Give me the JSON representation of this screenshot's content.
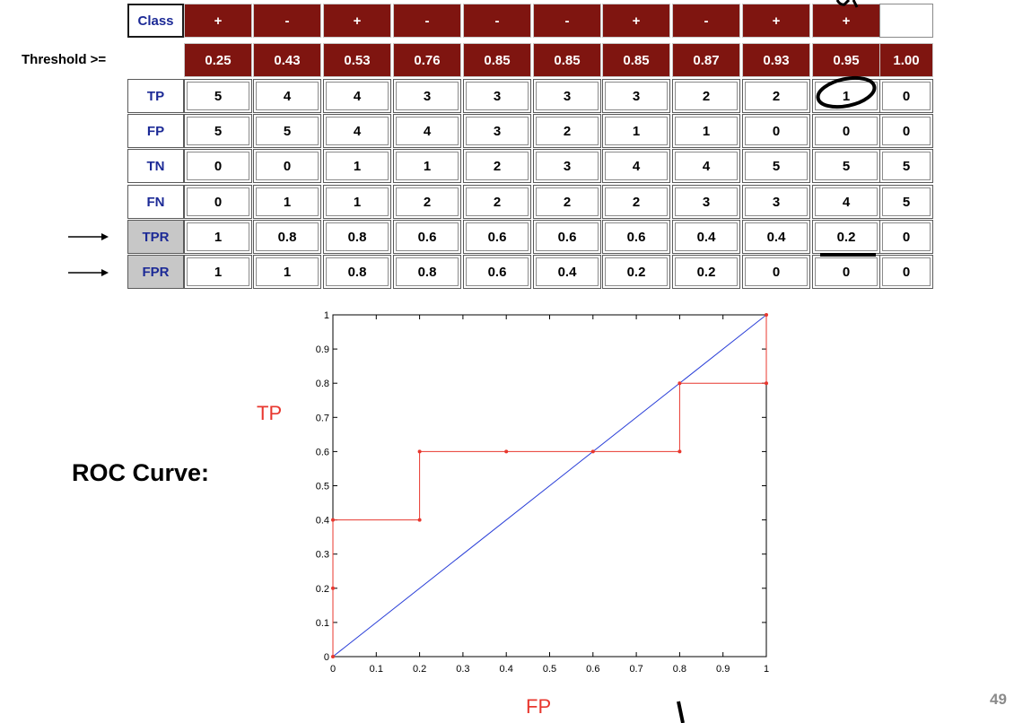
{
  "table": {
    "class_label": "Class",
    "class_row": [
      "+",
      "-",
      "+",
      "-",
      "-",
      "-",
      "+",
      "-",
      "+",
      "+",
      ""
    ],
    "threshold_label": "Threshold >=",
    "thresholds": [
      "0.25",
      "0.43",
      "0.53",
      "0.76",
      "0.85",
      "0.85",
      "0.85",
      "0.87",
      "0.93",
      "0.95",
      "1.00"
    ],
    "rows": [
      {
        "label": "TP",
        "values": [
          "5",
          "4",
          "4",
          "3",
          "3",
          "3",
          "3",
          "2",
          "2",
          "1",
          "0"
        ]
      },
      {
        "label": "FP",
        "values": [
          "5",
          "5",
          "4",
          "4",
          "3",
          "2",
          "1",
          "1",
          "0",
          "0",
          "0"
        ]
      },
      {
        "label": "TN",
        "values": [
          "0",
          "0",
          "1",
          "1",
          "2",
          "3",
          "4",
          "4",
          "5",
          "5",
          "5"
        ]
      },
      {
        "label": "FN",
        "values": [
          "0",
          "1",
          "1",
          "2",
          "2",
          "2",
          "2",
          "3",
          "3",
          "4",
          "5"
        ]
      },
      {
        "label": "TPR",
        "values": [
          "1",
          "0.8",
          "0.8",
          "0.6",
          "0.6",
          "0.6",
          "0.6",
          "0.4",
          "0.4",
          "0.2",
          "0"
        ]
      },
      {
        "label": "FPR",
        "values": [
          "1",
          "1",
          "0.8",
          "0.8",
          "0.6",
          "0.4",
          "0.2",
          "0.2",
          "0",
          "0",
          "0"
        ]
      }
    ]
  },
  "roc_label": "ROC Curve:",
  "slide_number": "49",
  "colors": {
    "header_bg": "#7f1510",
    "row_label_text": "#1c2a96",
    "roc_curve": "#e8372e",
    "diagonal": "#2a3fd8"
  },
  "chart_data": {
    "type": "line",
    "xlabel": "FP",
    "ylabel": "TP",
    "xlim": [
      0,
      1
    ],
    "ylim": [
      0,
      1
    ],
    "xticks": [
      "0",
      "0.1",
      "0.2",
      "0.3",
      "0.4",
      "0.5",
      "0.6",
      "0.7",
      "0.8",
      "0.9",
      "1"
    ],
    "yticks": [
      "0",
      "0.1",
      "0.2",
      "0.3",
      "0.4",
      "0.5",
      "0.6",
      "0.7",
      "0.8",
      "0.9",
      "1"
    ],
    "grid": false,
    "series": [
      {
        "values": [
          [
            0,
            0
          ],
          [
            1,
            1
          ]
        ]
      },
      {
        "values": [
          [
            0,
            0
          ],
          [
            0,
            0.2
          ],
          [
            0,
            0.4
          ],
          [
            0.2,
            0.4
          ],
          [
            0.2,
            0.6
          ],
          [
            0.4,
            0.6
          ],
          [
            0.6,
            0.6
          ],
          [
            0.8,
            0.6
          ],
          [
            0.8,
            0.8
          ],
          [
            1,
            0.8
          ],
          [
            1,
            1
          ]
        ]
      }
    ]
  }
}
